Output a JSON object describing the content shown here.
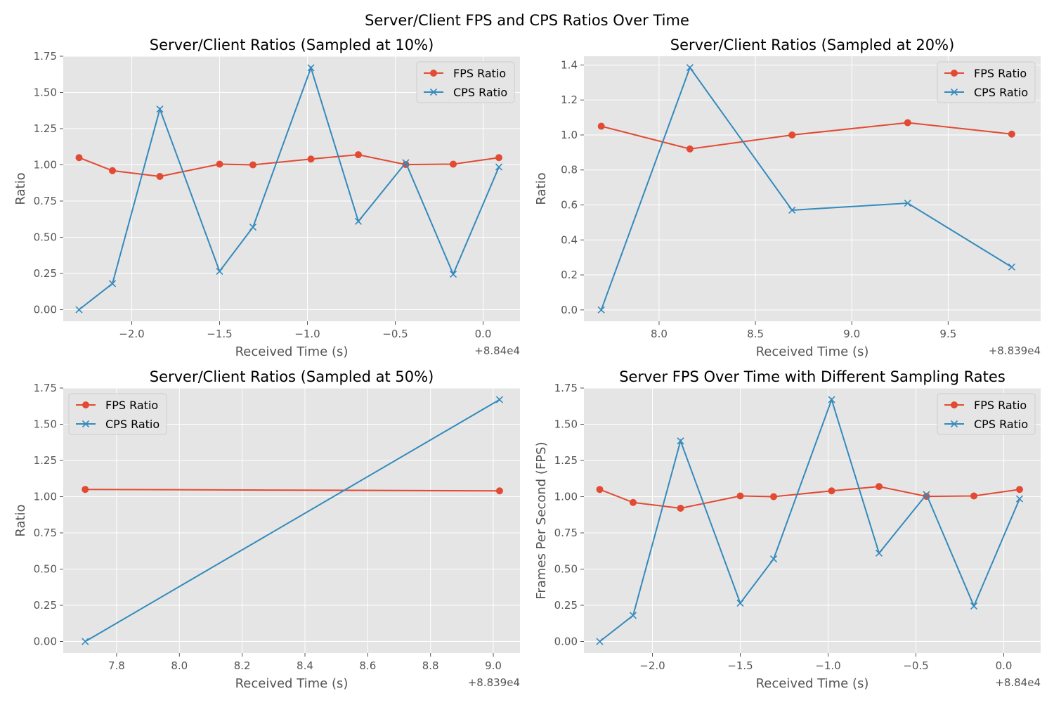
{
  "suptitle": "Server/Client FPS and CPS Ratios Over Time",
  "colors": {
    "fps": "#E24A33",
    "cps": "#348ABD",
    "panel_bg": "#E5E5E5",
    "grid": "#FFFFFF"
  },
  "chart_data": [
    {
      "type": "line",
      "title": "Server/Client Ratios (Sampled at 10%)",
      "xlabel": "Received Time (s)",
      "ylabel": "Ratio",
      "x_offset_label": "+8.84e4",
      "x": [
        88397.7,
        88397.89,
        88398.16,
        88398.5,
        88398.69,
        88399.02,
        88399.29,
        88399.56,
        88399.83,
        88400.09
      ],
      "xlim": [
        88397.61,
        88400.21
      ],
      "ylim": [
        -0.08,
        1.75
      ],
      "xticks": [
        88398.0,
        88398.5,
        88399.0,
        88399.5,
        88400.0
      ],
      "xtick_labels": [
        "−2.0",
        "−1.5",
        "−1.0",
        "−0.5",
        "0.0"
      ],
      "yticks": [
        0,
        0.25,
        0.5,
        0.75,
        1.0,
        1.25,
        1.5,
        1.75
      ],
      "ytick_labels": [
        "0.00",
        "0.25",
        "0.50",
        "0.75",
        "1.00",
        "1.25",
        "1.50",
        "1.75"
      ],
      "legend_position": "upper right",
      "series": [
        {
          "name": "FPS Ratio",
          "marker": "circle",
          "values": [
            1.05,
            0.96,
            0.92,
            1.005,
            1.0,
            1.04,
            1.07,
            1.002,
            1.005,
            1.05
          ]
        },
        {
          "name": "CPS Ratio",
          "marker": "x",
          "values": [
            0.0,
            0.18,
            1.385,
            0.265,
            0.57,
            1.67,
            0.61,
            1.015,
            0.245,
            0.985
          ]
        }
      ]
    },
    {
      "type": "line",
      "title": "Server/Client Ratios (Sampled at 20%)",
      "xlabel": "Received Time (s)",
      "ylabel": "Ratio",
      "x_offset_label": "+8.839e4",
      "x": [
        88397.7,
        88398.16,
        88398.69,
        88399.29,
        88399.83
      ],
      "xlim": [
        88397.61,
        88399.98
      ],
      "ylim": [
        -0.065,
        1.45
      ],
      "xticks": [
        88398.0,
        88398.5,
        88399.0,
        88399.5
      ],
      "xtick_labels": [
        "8.0",
        "8.5",
        "9.0",
        "9.5"
      ],
      "yticks": [
        0,
        0.2,
        0.4,
        0.6,
        0.8,
        1.0,
        1.2,
        1.4
      ],
      "ytick_labels": [
        "0.0",
        "0.2",
        "0.4",
        "0.6",
        "0.8",
        "1.0",
        "1.2",
        "1.4"
      ],
      "legend_position": "upper right",
      "series": [
        {
          "name": "FPS Ratio",
          "marker": "circle",
          "values": [
            1.05,
            0.92,
            1.0,
            1.07,
            1.005
          ]
        },
        {
          "name": "CPS Ratio",
          "marker": "x",
          "values": [
            0.0,
            1.385,
            0.57,
            0.61,
            0.245
          ]
        }
      ]
    },
    {
      "type": "line",
      "title": "Server/Client Ratios (Sampled at 50%)",
      "xlabel": "Received Time (s)",
      "ylabel": "Ratio",
      "x_offset_label": "+8.839e4",
      "x": [
        88397.7,
        88399.02
      ],
      "xlim": [
        88397.63,
        88399.085
      ],
      "ylim": [
        -0.08,
        1.75
      ],
      "xticks": [
        88397.8,
        88398.0,
        88398.2,
        88398.4,
        88398.6,
        88398.8,
        88399.0
      ],
      "xtick_labels": [
        "7.8",
        "8.0",
        "8.2",
        "8.4",
        "8.6",
        "8.8",
        "9.0"
      ],
      "yticks": [
        0,
        0.25,
        0.5,
        0.75,
        1.0,
        1.25,
        1.5,
        1.75
      ],
      "ytick_labels": [
        "0.00",
        "0.25",
        "0.50",
        "0.75",
        "1.00",
        "1.25",
        "1.50",
        "1.75"
      ],
      "legend_position": "upper left",
      "series": [
        {
          "name": "FPS Ratio",
          "marker": "circle",
          "values": [
            1.05,
            1.04
          ]
        },
        {
          "name": "CPS Ratio",
          "marker": "x",
          "values": [
            0.0,
            1.67
          ]
        }
      ]
    },
    {
      "type": "line",
      "title": "Server FPS Over Time with Different Sampling Rates",
      "xlabel": "Received Time (s)",
      "ylabel": "Frames Per Second (FPS)",
      "x_offset_label": "+8.84e4",
      "x": [
        88397.7,
        88397.89,
        88398.16,
        88398.5,
        88398.69,
        88399.02,
        88399.29,
        88399.56,
        88399.83,
        88400.09
      ],
      "xlim": [
        88397.61,
        88400.21
      ],
      "ylim": [
        -0.08,
        1.75
      ],
      "xticks": [
        88398.0,
        88398.5,
        88399.0,
        88399.5,
        88400.0
      ],
      "xtick_labels": [
        "−2.0",
        "−1.5",
        "−1.0",
        "−0.5",
        "0.0"
      ],
      "yticks": [
        0,
        0.25,
        0.5,
        0.75,
        1.0,
        1.25,
        1.5,
        1.75
      ],
      "ytick_labels": [
        "0.00",
        "0.25",
        "0.50",
        "0.75",
        "1.00",
        "1.25",
        "1.50",
        "1.75"
      ],
      "legend_position": "upper right",
      "series": [
        {
          "name": "FPS Ratio",
          "marker": "circle",
          "values": [
            1.05,
            0.96,
            0.92,
            1.005,
            1.0,
            1.04,
            1.07,
            1.002,
            1.005,
            1.05
          ]
        },
        {
          "name": "CPS Ratio",
          "marker": "x",
          "values": [
            0.0,
            0.18,
            1.385,
            0.265,
            0.57,
            1.67,
            0.61,
            1.015,
            0.245,
            0.985
          ]
        }
      ]
    }
  ]
}
